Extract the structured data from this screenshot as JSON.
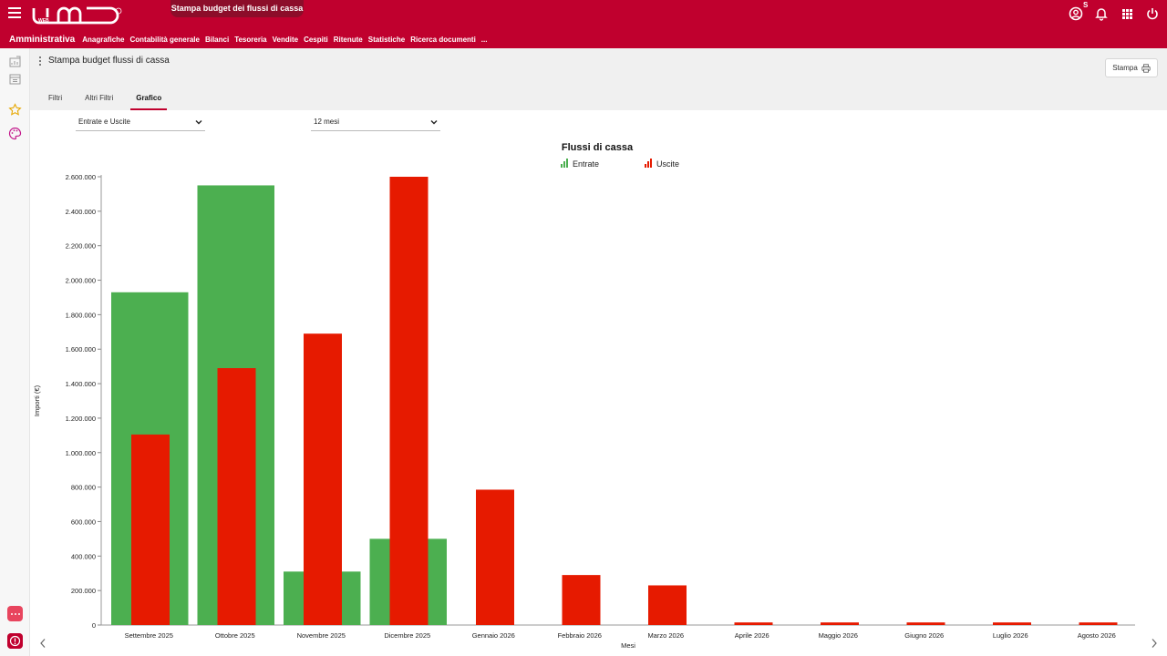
{
  "app": {
    "logo_text": "UMO",
    "logo_sub": "WEB",
    "document_tab": "Stampa budget dei flussi di cassa",
    "user_badge": "S"
  },
  "menubar": {
    "module": "Amministrativa",
    "items": [
      "Anagrafiche",
      "Contabilità generale",
      "Bilanci",
      "Tesoreria",
      "Vendite",
      "Cespiti",
      "Ritenute",
      "Statistiche",
      "Ricerca documenti",
      "..."
    ]
  },
  "header": {
    "title": "Stampa budget flussi di cassa",
    "print_label": "Stampa"
  },
  "tabs": [
    {
      "label": "Filtri",
      "active": false
    },
    {
      "label": "Altri Filtri",
      "active": false
    },
    {
      "label": "Grafico",
      "active": true
    }
  ],
  "filters": {
    "type_value": "Entrate e Uscite",
    "period_value": "12 mesi"
  },
  "colors": {
    "brand": "#c0002e",
    "entrate": "#4caf50",
    "uscite": "#e61a00"
  },
  "chart_data": {
    "type": "bar",
    "title": "Flussi di cassa",
    "xlabel": "Mesi",
    "ylabel": "Importi (€)",
    "ylim": [
      0,
      2600000
    ],
    "yticks": [
      0,
      200000,
      400000,
      600000,
      800000,
      1000000,
      1200000,
      1400000,
      1600000,
      1800000,
      2000000,
      2200000,
      2400000,
      2600000
    ],
    "ytick_labels": [
      "0",
      "200.000",
      "400.000",
      "600.000",
      "800.000",
      "1.000.000",
      "1.200.000",
      "1.400.000",
      "1.600.000",
      "1.800.000",
      "2.000.000",
      "2.200.000",
      "2.400.000",
      "2.600.000"
    ],
    "legend_placement": "top-center",
    "grid": false,
    "categories": [
      "Settembre 2025",
      "Ottobre 2025",
      "Novembre 2025",
      "Dicembre 2025",
      "Gennaio 2026",
      "Febbraio 2026",
      "Marzo 2026",
      "Aprile 2026",
      "Maggio 2026",
      "Giugno 2026",
      "Luglio 2026",
      "Agosto 2026"
    ],
    "series": [
      {
        "name": "Entrate",
        "color": "#4caf50",
        "values": [
          1930000,
          2550000,
          310000,
          500000,
          0,
          0,
          0,
          0,
          0,
          0,
          0,
          0
        ]
      },
      {
        "name": "Uscite",
        "color": "#e61a00",
        "values": [
          1105000,
          1490000,
          1690000,
          2600000,
          785000,
          290000,
          230000,
          15000,
          15000,
          15000,
          15000,
          15000
        ]
      }
    ]
  }
}
